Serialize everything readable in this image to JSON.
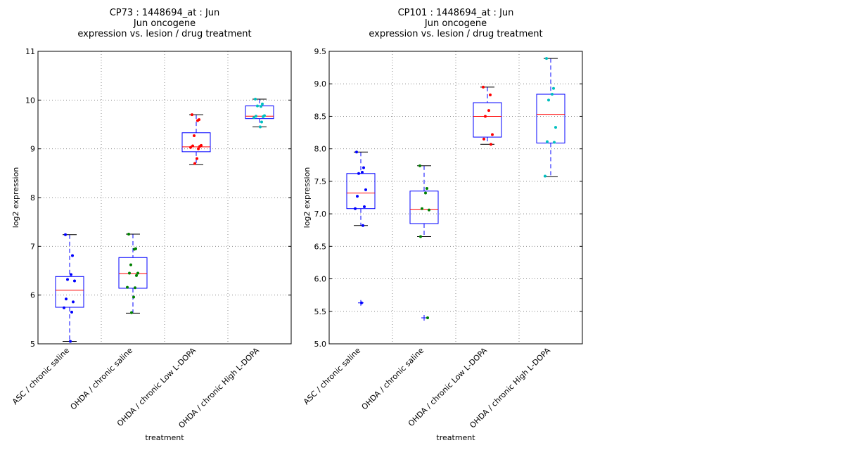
{
  "chart_data": [
    {
      "type": "box",
      "title_lines": [
        "CP73 : 1448694_at : Jun",
        "Jun oncogene",
        "expression vs. lesion / drug treatment"
      ],
      "xlabel": "treatment",
      "ylabel": "log2 expression",
      "ylim": [
        5,
        11
      ],
      "yticks": [
        5,
        6,
        7,
        8,
        9,
        10,
        11
      ],
      "ytick_labels": [
        "5",
        "6",
        "7",
        "8",
        "9",
        "10",
        "11"
      ],
      "grid": true,
      "categories": [
        "ASC / chronic saline",
        "OHDA / chronic saline",
        "OHDA / chronic Low L-DOPA",
        "OHDA / chronic High L-DOPA"
      ],
      "point_colors": [
        "#0000ff",
        "#008000",
        "#ff0000",
        "#00bfbf"
      ],
      "boxes": [
        {
          "whisker_low": 5.05,
          "q1": 5.75,
          "median": 6.1,
          "q3": 6.38,
          "whisker_high": 7.24,
          "outliers": []
        },
        {
          "whisker_low": 5.63,
          "q1": 6.14,
          "median": 6.44,
          "q3": 6.77,
          "whisker_high": 7.25,
          "outliers": []
        },
        {
          "whisker_low": 8.68,
          "q1": 8.94,
          "median": 9.04,
          "q3": 9.33,
          "whisker_high": 9.7,
          "outliers": []
        },
        {
          "whisker_low": 9.45,
          "q1": 9.62,
          "median": 9.67,
          "q3": 9.88,
          "whisker_high": 10.02,
          "outliers": []
        }
      ],
      "points": [
        [
          7.24,
          6.81,
          6.42,
          6.32,
          6.29,
          5.92,
          5.86,
          5.74,
          5.65,
          5.05
        ],
        [
          7.25,
          6.95,
          6.94,
          6.62,
          6.45,
          6.45,
          6.4,
          6.16,
          6.15,
          5.96,
          5.64
        ],
        [
          9.7,
          9.6,
          9.58,
          9.27,
          9.07,
          9.06,
          9.05,
          9.03,
          9.0,
          8.8,
          8.7
        ],
        [
          10.02,
          9.92,
          9.87,
          9.88,
          9.68,
          9.67,
          9.66,
          9.64,
          9.55,
          9.45
        ]
      ]
    },
    {
      "type": "box",
      "title_lines": [
        "CP101 : 1448694_at : Jun",
        "Jun oncogene",
        "expression vs. lesion / drug treatment"
      ],
      "xlabel": "treatment",
      "ylabel": "log2 expression",
      "ylim": [
        5.0,
        9.5
      ],
      "yticks": [
        5.0,
        5.5,
        6.0,
        6.5,
        7.0,
        7.5,
        8.0,
        8.5,
        9.0,
        9.5
      ],
      "ytick_labels": [
        "5.0",
        "5.5",
        "6.0",
        "6.5",
        "7.0",
        "7.5",
        "8.0",
        "8.5",
        "9.0",
        "9.5"
      ],
      "grid": true,
      "categories": [
        "ASC / chronic saline",
        "OHDA / chronic saline",
        "OHDA / chronic Low L-DOPA",
        "OHDA / chronic High L-DOPA"
      ],
      "point_colors": [
        "#0000ff",
        "#008000",
        "#ff0000",
        "#00bfbf"
      ],
      "boxes": [
        {
          "whisker_low": 6.82,
          "q1": 7.08,
          "median": 7.32,
          "q3": 7.62,
          "whisker_high": 7.95,
          "outliers": [
            5.63
          ]
        },
        {
          "whisker_low": 6.65,
          "q1": 6.85,
          "median": 7.07,
          "q3": 7.35,
          "whisker_high": 7.74,
          "outliers": [
            5.4
          ]
        },
        {
          "whisker_low": 8.07,
          "q1": 8.18,
          "median": 8.5,
          "q3": 8.71,
          "whisker_high": 8.95,
          "outliers": []
        },
        {
          "whisker_low": 7.57,
          "q1": 8.09,
          "median": 8.53,
          "q3": 8.84,
          "whisker_high": 9.39,
          "outliers": []
        }
      ],
      "points": [
        [
          7.95,
          7.71,
          7.64,
          7.62,
          7.37,
          7.27,
          7.11,
          7.08,
          6.82,
          5.63
        ],
        [
          7.74,
          7.39,
          7.32,
          7.08,
          7.06,
          6.65,
          5.4
        ],
        [
          8.95,
          8.83,
          8.59,
          8.5,
          8.22,
          8.15,
          8.07
        ],
        [
          9.39,
          8.93,
          8.84,
          8.75,
          8.33,
          8.11,
          8.1,
          7.58
        ]
      ]
    }
  ]
}
